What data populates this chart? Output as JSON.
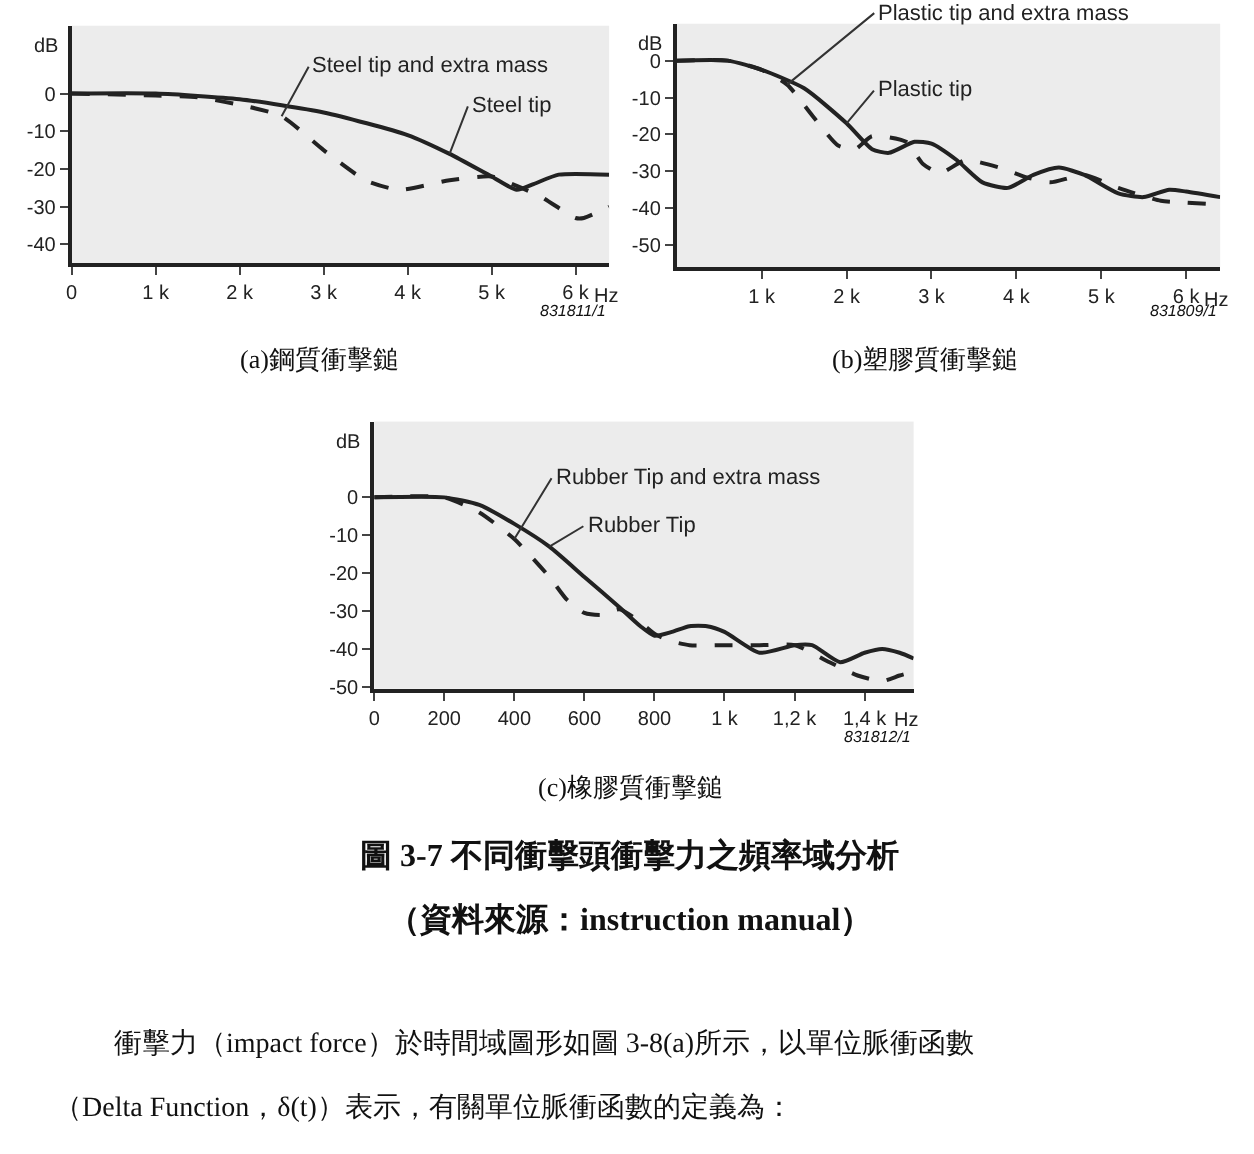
{
  "chart_data": [
    {
      "type": "line",
      "ylabel": "dB",
      "xlim": [
        0,
        6400
      ],
      "ylim": [
        -45,
        18
      ],
      "xticks": [
        0,
        {
          "value": 1000,
          "label": "1 k"
        },
        {
          "value": 2000,
          "label": "2 k"
        },
        {
          "value": 3000,
          "label": "3 k"
        },
        {
          "value": 4000,
          "label": "4 k"
        },
        {
          "value": 5000,
          "label": "5 k"
        },
        {
          "value": 6000,
          "label": "6 k"
        }
      ],
      "xlabel": "Hz",
      "yticks": [
        0,
        -10,
        -20,
        -30,
        -40
      ],
      "series": [
        {
          "name": "Steel tip and extra mass",
          "color": "#222222",
          "line_style": "dashed",
          "x": [
            0,
            1000,
            1500,
            2000,
            2500,
            3000,
            3500,
            3900,
            4500,
            5000,
            5300,
            5600,
            6000,
            6100,
            6400
          ],
          "values": [
            0,
            -0.5,
            -1,
            -3,
            -6,
            -15,
            -23,
            -25.5,
            -23,
            -22,
            -24.5,
            -27.5,
            -33,
            -33,
            -30
          ]
        },
        {
          "name": "Steel tip",
          "color": "#222222",
          "line_style": "solid",
          "x": [
            0,
            1000,
            2000,
            3000,
            4000,
            4500,
            5000,
            5300,
            5500,
            5800,
            6400
          ],
          "values": [
            0,
            0,
            -1.5,
            -5,
            -11,
            -16,
            -22,
            -25.5,
            -24,
            -21.5,
            -21.5
          ]
        }
      ],
      "annotations": [
        "831811/1",
        "(a)鋼質衝擊鎚"
      ]
    },
    {
      "type": "line",
      "ylabel": "dB",
      "xlim": [
        0,
        6400
      ],
      "ylim": [
        -56,
        10
      ],
      "xticks": [
        {
          "value": 1000,
          "label": "1 k"
        },
        {
          "value": 2000,
          "label": "2 k"
        },
        {
          "value": 3000,
          "label": "3 k"
        },
        {
          "value": 4000,
          "label": "4 k"
        },
        {
          "value": 5000,
          "label": "5 k"
        },
        {
          "value": 6000,
          "label": "6 k"
        }
      ],
      "xlabel": "Hz",
      "yticks": [
        0,
        -10,
        -20,
        -30,
        -40,
        -50
      ],
      "series": [
        {
          "name": "Plastic tip and extra mass",
          "color": "#222222",
          "line_style": "dashed",
          "x": [
            0,
            600,
            1000,
            1300,
            1600,
            1900,
            2100,
            2300,
            2700,
            2900,
            3100,
            3400,
            3800,
            4100,
            4400,
            4800,
            5200,
            5700,
            6000,
            6400
          ],
          "values": [
            0,
            0,
            -2.5,
            -6.5,
            -15,
            -23,
            -24,
            -20.5,
            -22,
            -28,
            -30.5,
            -27,
            -29,
            -31.5,
            -33,
            -31,
            -34.5,
            -38,
            -38.5,
            -39
          ]
        },
        {
          "name": "Plastic tip",
          "color": "#222222",
          "line_style": "solid",
          "x": [
            0,
            600,
            1000,
            1500,
            2000,
            2300,
            2500,
            2800,
            3000,
            3300,
            3600,
            3900,
            4200,
            4500,
            4800,
            5200,
            5500,
            5800,
            6000,
            6400
          ],
          "values": [
            0,
            0,
            -2.5,
            -7.5,
            -17,
            -24,
            -25,
            -22,
            -22.5,
            -27,
            -33,
            -34.5,
            -31,
            -29,
            -31,
            -36,
            -37,
            -35,
            -35.5,
            -37
          ]
        }
      ],
      "annotations": [
        "831809/1",
        "(b)塑膠質衝擊鎚"
      ]
    },
    {
      "type": "line",
      "ylabel": "dB",
      "xlim": [
        0,
        1540
      ],
      "ylim": [
        -50.5,
        20
      ],
      "xticks": [
        0,
        200,
        400,
        600,
        800,
        {
          "value": 1000,
          "label": "1 k"
        },
        {
          "value": 1200,
          "label": "1,2 k"
        },
        {
          "value": 1400,
          "label": "1,4 k"
        }
      ],
      "xlabel": "Hz",
      "yticks": [
        0,
        -10,
        -20,
        -30,
        -40,
        -50
      ],
      "series": [
        {
          "name": "Rubber Tip and extra mass",
          "color": "#222222",
          "line_style": "dashed",
          "x": [
            0,
            200,
            300,
            400,
            500,
            550,
            600,
            650,
            700,
            760,
            800,
            850,
            900,
            1000,
            1100,
            1200,
            1300,
            1380,
            1450,
            1500,
            1540
          ],
          "values": [
            0,
            0,
            -4,
            -11,
            -21,
            -27,
            -30.5,
            -31,
            -29.5,
            -33,
            -36,
            -38,
            -39,
            -39,
            -39,
            -39,
            -43.5,
            -47,
            -48.5,
            -47,
            -46
          ]
        },
        {
          "name": "Rubber Tip",
          "color": "#222222",
          "line_style": "solid",
          "x": [
            0,
            200,
            300,
            400,
            500,
            600,
            700,
            760,
            800,
            850,
            900,
            950,
            1000,
            1100,
            1200,
            1250,
            1330,
            1400,
            1450,
            1500,
            1540
          ],
          "values": [
            0,
            0,
            -2,
            -7,
            -13,
            -21,
            -29,
            -34,
            -36.5,
            -35.5,
            -34,
            -34,
            -35.5,
            -41,
            -39,
            -39,
            -43.5,
            -41,
            -40,
            -41,
            -42.5
          ]
        }
      ],
      "annotations": [
        "831812/1",
        "(c)橡膠質衝擊鎚",
        "圖 3-7 不同衝擊頭衝擊力之頻率域分析",
        "（資料來源：instruction manual）",
        "衝擊力（impact force）於時間域圖形如圖 3-8(a)所示，以單位脈衝函數",
        "（Delta Function，δ(t)）表示，有關單位脈衝函數的定義為："
      ]
    }
  ]
}
